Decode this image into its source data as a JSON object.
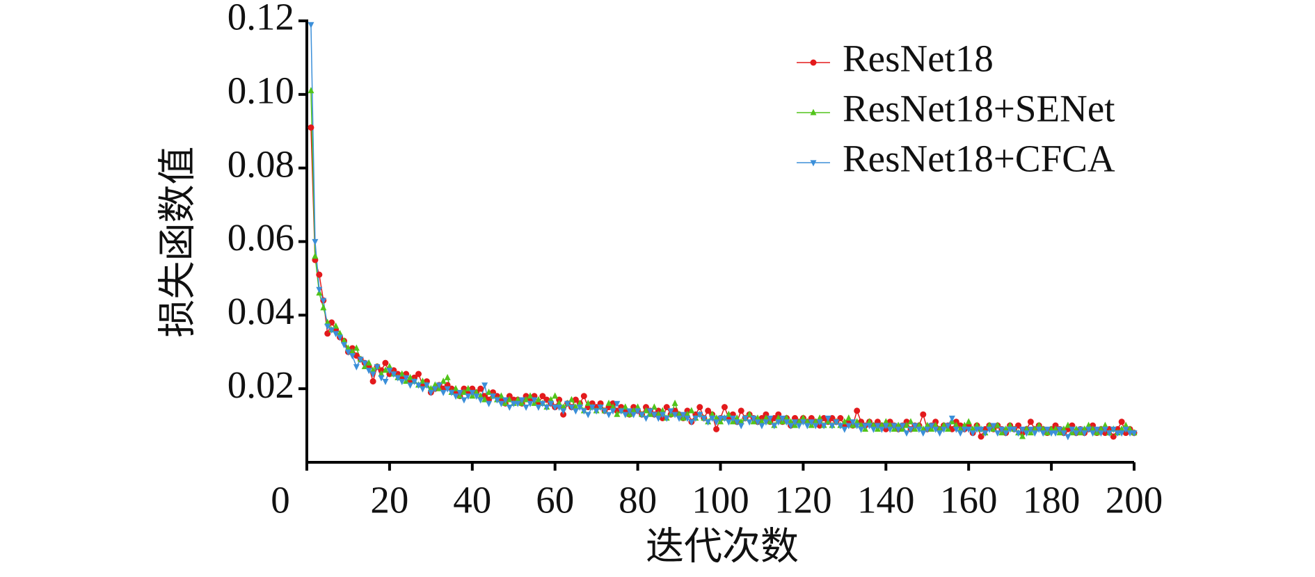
{
  "chart_data": {
    "type": "line",
    "x_label": "迭代次数",
    "y_label": "损失函数值",
    "xlim": [
      0,
      200
    ],
    "xticks": [
      0,
      20,
      40,
      60,
      80,
      100,
      120,
      140,
      160,
      180,
      200
    ],
    "ylim": [
      0,
      0.12
    ],
    "yticks": [
      0.02,
      0.04,
      0.06,
      0.08,
      {
        "value": 0.1,
        "label": "0.10"
      },
      0.12
    ],
    "legend": "upper right",
    "x": [
      1,
      2,
      3,
      4,
      5,
      6,
      7,
      8,
      9,
      10,
      11,
      12,
      13,
      14,
      15,
      16,
      17,
      18,
      19,
      20,
      21,
      22,
      23,
      24,
      25,
      26,
      27,
      28,
      29,
      30,
      31,
      32,
      33,
      34,
      35,
      36,
      37,
      38,
      39,
      40,
      41,
      42,
      43,
      44,
      45,
      46,
      47,
      48,
      49,
      50,
      51,
      52,
      53,
      54,
      55,
      56,
      57,
      58,
      59,
      60,
      61,
      62,
      63,
      64,
      65,
      66,
      67,
      68,
      69,
      70,
      71,
      72,
      73,
      74,
      75,
      76,
      77,
      78,
      79,
      80,
      81,
      82,
      83,
      84,
      85,
      86,
      87,
      88,
      89,
      90,
      91,
      92,
      93,
      94,
      95,
      96,
      97,
      98,
      99,
      100,
      101,
      102,
      103,
      104,
      105,
      106,
      107,
      108,
      109,
      110,
      111,
      112,
      113,
      114,
      115,
      116,
      117,
      118,
      119,
      120,
      121,
      122,
      123,
      124,
      125,
      126,
      127,
      128,
      129,
      130,
      131,
      132,
      133,
      134,
      135,
      136,
      137,
      138,
      139,
      140,
      141,
      142,
      143,
      144,
      145,
      146,
      147,
      148,
      149,
      150,
      151,
      152,
      153,
      154,
      155,
      156,
      157,
      158,
      159,
      160,
      161,
      162,
      163,
      164,
      165,
      166,
      167,
      168,
      169,
      170,
      171,
      172,
      173,
      174,
      175,
      176,
      177,
      178,
      179,
      180,
      181,
      182,
      183,
      184,
      185,
      186,
      187,
      188,
      189,
      190,
      191,
      192,
      193,
      194,
      195,
      196,
      197,
      198,
      199,
      200
    ],
    "series": [
      {
        "name": "ResNet18",
        "color": "#e31a1c",
        "marker": "circle",
        "values": [
          0.091,
          0.055,
          0.051,
          0.044,
          0.035,
          0.038,
          0.036,
          0.034,
          0.033,
          0.03,
          0.031,
          0.029,
          0.028,
          0.027,
          0.026,
          0.022,
          0.026,
          0.025,
          0.027,
          0.024,
          0.025,
          0.024,
          0.023,
          0.024,
          0.022,
          0.023,
          0.024,
          0.021,
          0.022,
          0.019,
          0.02,
          0.021,
          0.02,
          0.021,
          0.02,
          0.019,
          0.018,
          0.02,
          0.019,
          0.02,
          0.019,
          0.02,
          0.018,
          0.017,
          0.019,
          0.018,
          0.017,
          0.016,
          0.018,
          0.017,
          0.017,
          0.016,
          0.018,
          0.017,
          0.018,
          0.016,
          0.018,
          0.017,
          0.016,
          0.015,
          0.017,
          0.013,
          0.016,
          0.015,
          0.017,
          0.016,
          0.018,
          0.015,
          0.016,
          0.015,
          0.016,
          0.014,
          0.015,
          0.016,
          0.014,
          0.015,
          0.014,
          0.013,
          0.015,
          0.014,
          0.013,
          0.015,
          0.014,
          0.013,
          0.014,
          0.012,
          0.015,
          0.013,
          0.014,
          0.013,
          0.012,
          0.014,
          0.011,
          0.013,
          0.015,
          0.012,
          0.014,
          0.013,
          0.009,
          0.012,
          0.015,
          0.012,
          0.013,
          0.011,
          0.014,
          0.012,
          0.013,
          0.012,
          0.011,
          0.012,
          0.013,
          0.011,
          0.012,
          0.013,
          0.011,
          0.012,
          0.01,
          0.012,
          0.011,
          0.012,
          0.011,
          0.012,
          0.011,
          0.01,
          0.012,
          0.011,
          0.012,
          0.011,
          0.012,
          0.01,
          0.011,
          0.01,
          0.014,
          0.011,
          0.01,
          0.011,
          0.01,
          0.011,
          0.01,
          0.009,
          0.011,
          0.01,
          0.009,
          0.01,
          0.011,
          0.009,
          0.01,
          0.01,
          0.013,
          0.009,
          0.01,
          0.011,
          0.009,
          0.01,
          0.01,
          0.009,
          0.011,
          0.01,
          0.009,
          0.01,
          0.008,
          0.01,
          0.007,
          0.009,
          0.01,
          0.009,
          0.01,
          0.009,
          0.008,
          0.01,
          0.009,
          0.01,
          0.008,
          0.009,
          0.011,
          0.009,
          0.01,
          0.009,
          0.008,
          0.009,
          0.01,
          0.009,
          0.008,
          0.009,
          0.01,
          0.008,
          0.009,
          0.008,
          0.009,
          0.01,
          0.008,
          0.009,
          0.008,
          0.009,
          0.007,
          0.009,
          0.011,
          0.008,
          0.009,
          0.008
        ]
      },
      {
        "name": "ResNet18+SENet",
        "color": "#52c41a",
        "marker": "triangle-up",
        "values": [
          0.101,
          0.056,
          0.046,
          0.042,
          0.038,
          0.036,
          0.037,
          0.035,
          0.033,
          0.031,
          0.03,
          0.031,
          0.028,
          0.026,
          0.027,
          0.025,
          0.026,
          0.024,
          0.025,
          0.026,
          0.024,
          0.023,
          0.024,
          0.022,
          0.023,
          0.022,
          0.021,
          0.022,
          0.021,
          0.02,
          0.021,
          0.02,
          0.022,
          0.023,
          0.019,
          0.02,
          0.018,
          0.019,
          0.02,
          0.018,
          0.019,
          0.018,
          0.017,
          0.019,
          0.018,
          0.017,
          0.018,
          0.016,
          0.017,
          0.016,
          0.017,
          0.016,
          0.017,
          0.018,
          0.016,
          0.017,
          0.016,
          0.015,
          0.017,
          0.018,
          0.016,
          0.015,
          0.016,
          0.017,
          0.015,
          0.016,
          0.014,
          0.016,
          0.015,
          0.014,
          0.015,
          0.014,
          0.016,
          0.015,
          0.013,
          0.014,
          0.015,
          0.013,
          0.014,
          0.015,
          0.013,
          0.014,
          0.013,
          0.015,
          0.013,
          0.014,
          0.012,
          0.013,
          0.016,
          0.013,
          0.012,
          0.013,
          0.014,
          0.012,
          0.013,
          0.012,
          0.011,
          0.013,
          0.012,
          0.011,
          0.012,
          0.013,
          0.011,
          0.012,
          0.011,
          0.012,
          0.013,
          0.011,
          0.012,
          0.011,
          0.012,
          0.011,
          0.01,
          0.012,
          0.011,
          0.012,
          0.011,
          0.01,
          0.011,
          0.012,
          0.011,
          0.01,
          0.011,
          0.012,
          0.01,
          0.011,
          0.01,
          0.011,
          0.01,
          0.011,
          0.012,
          0.01,
          0.011,
          0.01,
          0.009,
          0.011,
          0.01,
          0.009,
          0.01,
          0.011,
          0.01,
          0.009,
          0.01,
          0.009,
          0.01,
          0.011,
          0.009,
          0.01,
          0.009,
          0.01,
          0.009,
          0.01,
          0.009,
          0.01,
          0.009,
          0.011,
          0.01,
          0.009,
          0.01,
          0.011,
          0.009,
          0.01,
          0.009,
          0.008,
          0.01,
          0.009,
          0.01,
          0.008,
          0.009,
          0.01,
          0.009,
          0.008,
          0.007,
          0.009,
          0.008,
          0.009,
          0.01,
          0.009,
          0.008,
          0.009,
          0.009,
          0.008,
          0.009,
          0.01,
          0.008,
          0.009,
          0.008,
          0.009,
          0.01,
          0.009,
          0.008,
          0.009,
          0.01,
          0.008,
          0.009,
          0.008,
          0.009,
          0.01,
          0.009,
          0.008
        ]
      },
      {
        "name": "ResNet18+CFCA",
        "color": "#3b8fd9",
        "marker": "triangle-down",
        "values": [
          0.119,
          0.06,
          0.047,
          0.044,
          0.037,
          0.036,
          0.035,
          0.034,
          0.032,
          0.03,
          0.029,
          0.026,
          0.028,
          0.027,
          0.025,
          0.024,
          0.026,
          0.023,
          0.022,
          0.025,
          0.024,
          0.023,
          0.022,
          0.023,
          0.021,
          0.022,
          0.021,
          0.02,
          0.021,
          0.019,
          0.02,
          0.021,
          0.019,
          0.02,
          0.019,
          0.018,
          0.019,
          0.017,
          0.018,
          0.019,
          0.018,
          0.017,
          0.021,
          0.016,
          0.018,
          0.017,
          0.016,
          0.017,
          0.015,
          0.016,
          0.016,
          0.017,
          0.015,
          0.016,
          0.017,
          0.015,
          0.016,
          0.015,
          0.016,
          0.015,
          0.015,
          0.014,
          0.016,
          0.015,
          0.014,
          0.015,
          0.014,
          0.013,
          0.015,
          0.014,
          0.015,
          0.014,
          0.013,
          0.014,
          0.016,
          0.014,
          0.013,
          0.014,
          0.013,
          0.014,
          0.013,
          0.012,
          0.014,
          0.013,
          0.012,
          0.013,
          0.012,
          0.014,
          0.013,
          0.012,
          0.013,
          0.012,
          0.011,
          0.012,
          0.013,
          0.012,
          0.011,
          0.012,
          0.011,
          0.012,
          0.012,
          0.011,
          0.012,
          0.011,
          0.01,
          0.012,
          0.011,
          0.012,
          0.011,
          0.01,
          0.011,
          0.012,
          0.01,
          0.011,
          0.012,
          0.011,
          0.01,
          0.011,
          0.01,
          0.011,
          0.01,
          0.011,
          0.01,
          0.011,
          0.01,
          0.012,
          0.01,
          0.011,
          0.01,
          0.009,
          0.01,
          0.011,
          0.01,
          0.009,
          0.01,
          0.01,
          0.009,
          0.01,
          0.009,
          0.01,
          0.009,
          0.01,
          0.009,
          0.01,
          0.008,
          0.009,
          0.01,
          0.009,
          0.008,
          0.009,
          0.01,
          0.009,
          0.008,
          0.009,
          0.01,
          0.012,
          0.009,
          0.008,
          0.009,
          0.009,
          0.008,
          0.009,
          0.009,
          0.008,
          0.009,
          0.01,
          0.008,
          0.009,
          0.008,
          0.009,
          0.009,
          0.008,
          0.009,
          0.008,
          0.009,
          0.008,
          0.009,
          0.008,
          0.009,
          0.008,
          0.008,
          0.009,
          0.008,
          0.007,
          0.009,
          0.008,
          0.009,
          0.008,
          0.009,
          0.008,
          0.009,
          0.008,
          0.009,
          0.008,
          0.009,
          0.008,
          0.008,
          0.009,
          0.008,
          0.008
        ]
      }
    ]
  }
}
